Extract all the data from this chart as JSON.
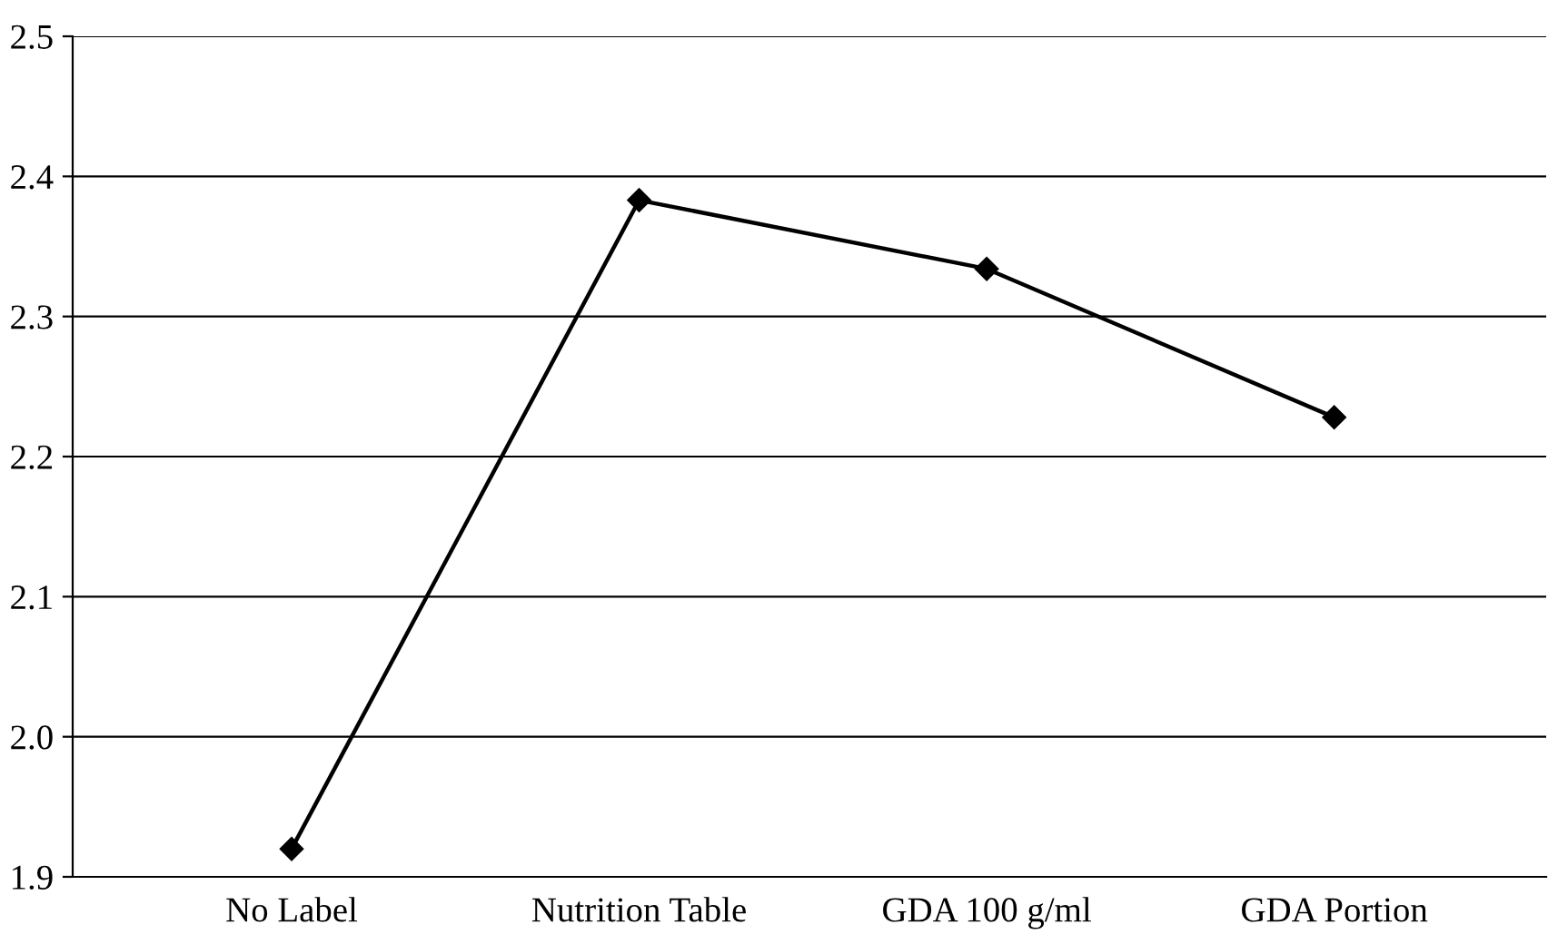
{
  "chart_data": {
    "type": "line",
    "categories": [
      "No Label",
      "Nutrition Table",
      "GDA 100 g/ml",
      "GDA Portion"
    ],
    "series": [
      {
        "color": "#000000",
        "values": [
          1.92,
          2.383,
          2.334,
          2.228
        ]
      }
    ],
    "ylim": [
      1.9,
      2.5
    ],
    "yticks": [
      {
        "value": 1.9,
        "label": "1.9"
      },
      {
        "value": 2.0,
        "label": "2.0"
      },
      {
        "value": 2.1,
        "label": "2.1"
      },
      {
        "value": 2.2,
        "label": "2.2"
      },
      {
        "value": 2.3,
        "label": "2.3"
      },
      {
        "value": 2.4,
        "label": "2.4"
      },
      {
        "value": 2.5,
        "label": "2.5"
      }
    ],
    "grid": "y",
    "marker": "diamond",
    "line_style": "solid"
  }
}
